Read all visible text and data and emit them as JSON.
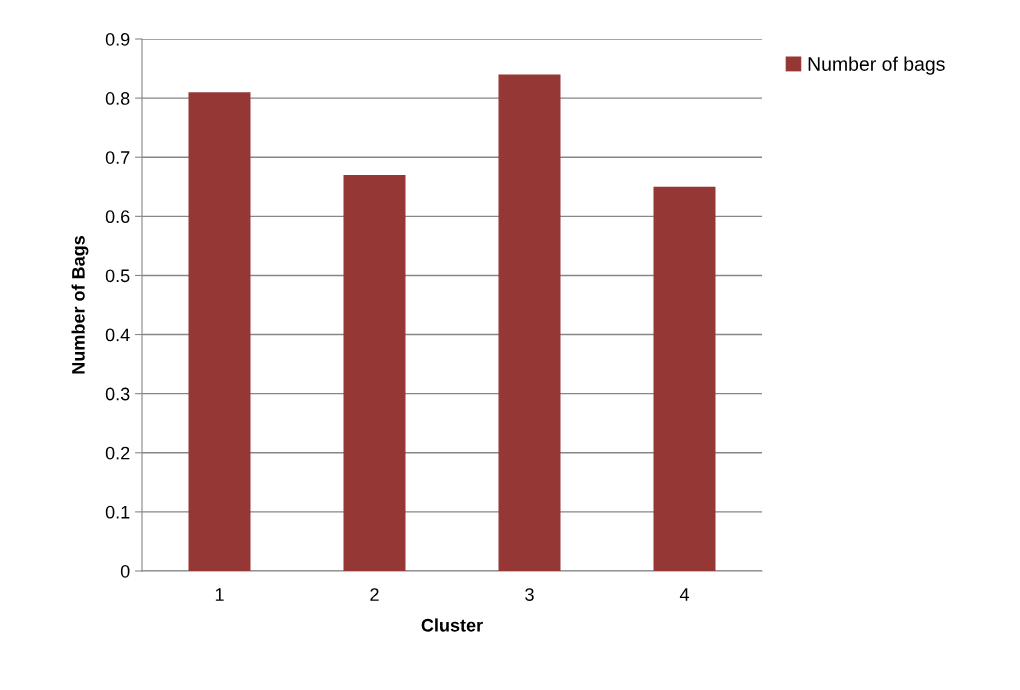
{
  "chart_data": {
    "type": "bar",
    "xlabel": "Cluster",
    "ylabel": "Number of Bags",
    "categories": [
      "1",
      "2",
      "3",
      "4"
    ],
    "series": [
      {
        "name": "Number of bags",
        "color": "#953735",
        "values": [
          0.81,
          0.67,
          0.84,
          0.65
        ]
      }
    ],
    "ylim": [
      0,
      0.9
    ],
    "yticks": [
      0,
      0.1,
      0.2,
      0.3,
      0.4,
      0.5,
      0.6,
      0.7,
      0.8,
      0.9
    ],
    "grid": "y",
    "legend": "top right"
  }
}
